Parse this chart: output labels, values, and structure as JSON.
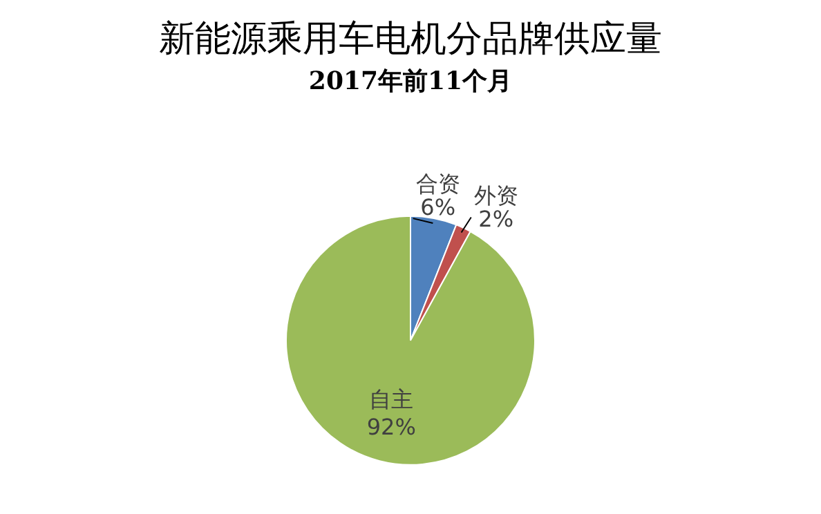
{
  "chart_data": {
    "type": "pie",
    "title": "新能源乘用车电机分品牌供应量",
    "subtitle": "2017年前11个月",
    "categories": [
      "合资",
      "外资",
      "自主"
    ],
    "values": [
      6,
      2,
      92
    ],
    "value_labels": [
      "6%",
      "2%",
      "92%"
    ],
    "colors": [
      "#4f81bd",
      "#c0504d",
      "#9bbb59"
    ],
    "legend": false
  }
}
